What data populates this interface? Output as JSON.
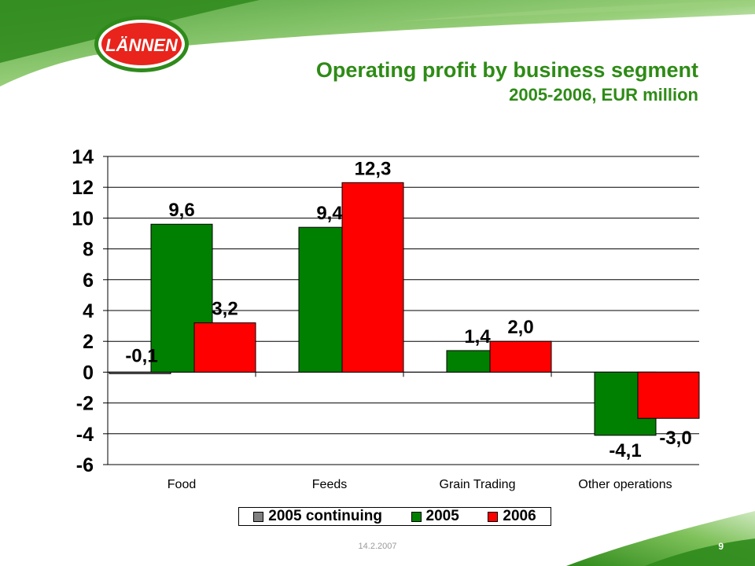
{
  "header": {
    "logo_text": "LÄNNEN",
    "title": "Operating profit by business segment",
    "subtitle": "2005-2006, EUR million"
  },
  "chart_data": {
    "type": "bar",
    "categories": [
      "Food",
      "Feeds",
      "Grain Trading",
      "Other operations"
    ],
    "series": [
      {
        "name": "2005 continuing",
        "values": [
          -0.1,
          null,
          null,
          null
        ],
        "color": "#808080"
      },
      {
        "name": "2005",
        "values": [
          9.6,
          9.4,
          1.4,
          -4.1
        ],
        "color": "#008000"
      },
      {
        "name": "2006",
        "values": [
          3.2,
          12.3,
          2.0,
          -3.0
        ],
        "color": "#ff0000"
      }
    ],
    "data_labels": [
      {
        "category": "Food",
        "series": "2005 continuing",
        "text": "-0,1"
      },
      {
        "category": "Food",
        "series": "2005",
        "text": "9,6"
      },
      {
        "category": "Food",
        "series": "2006",
        "text": "3,2"
      },
      {
        "category": "Feeds",
        "series": "2005",
        "text": "9,4"
      },
      {
        "category": "Feeds",
        "series": "2006",
        "text": "12,3"
      },
      {
        "category": "Grain Trading",
        "series": "2005",
        "text": "1,4"
      },
      {
        "category": "Grain Trading",
        "series": "2006",
        "text": "2,0"
      },
      {
        "category": "Other operations",
        "series": "2005",
        "text": "-4,1"
      },
      {
        "category": "Other operations",
        "series": "2006",
        "text": "-3,0"
      }
    ],
    "ylim": [
      -6,
      14
    ],
    "yticks": [
      14,
      12,
      10,
      8,
      6,
      4,
      2,
      0,
      -2,
      -4,
      -6
    ],
    "grid": true,
    "legend_position": "bottom"
  },
  "footer": {
    "date": "14.2.2007",
    "page": "9"
  }
}
